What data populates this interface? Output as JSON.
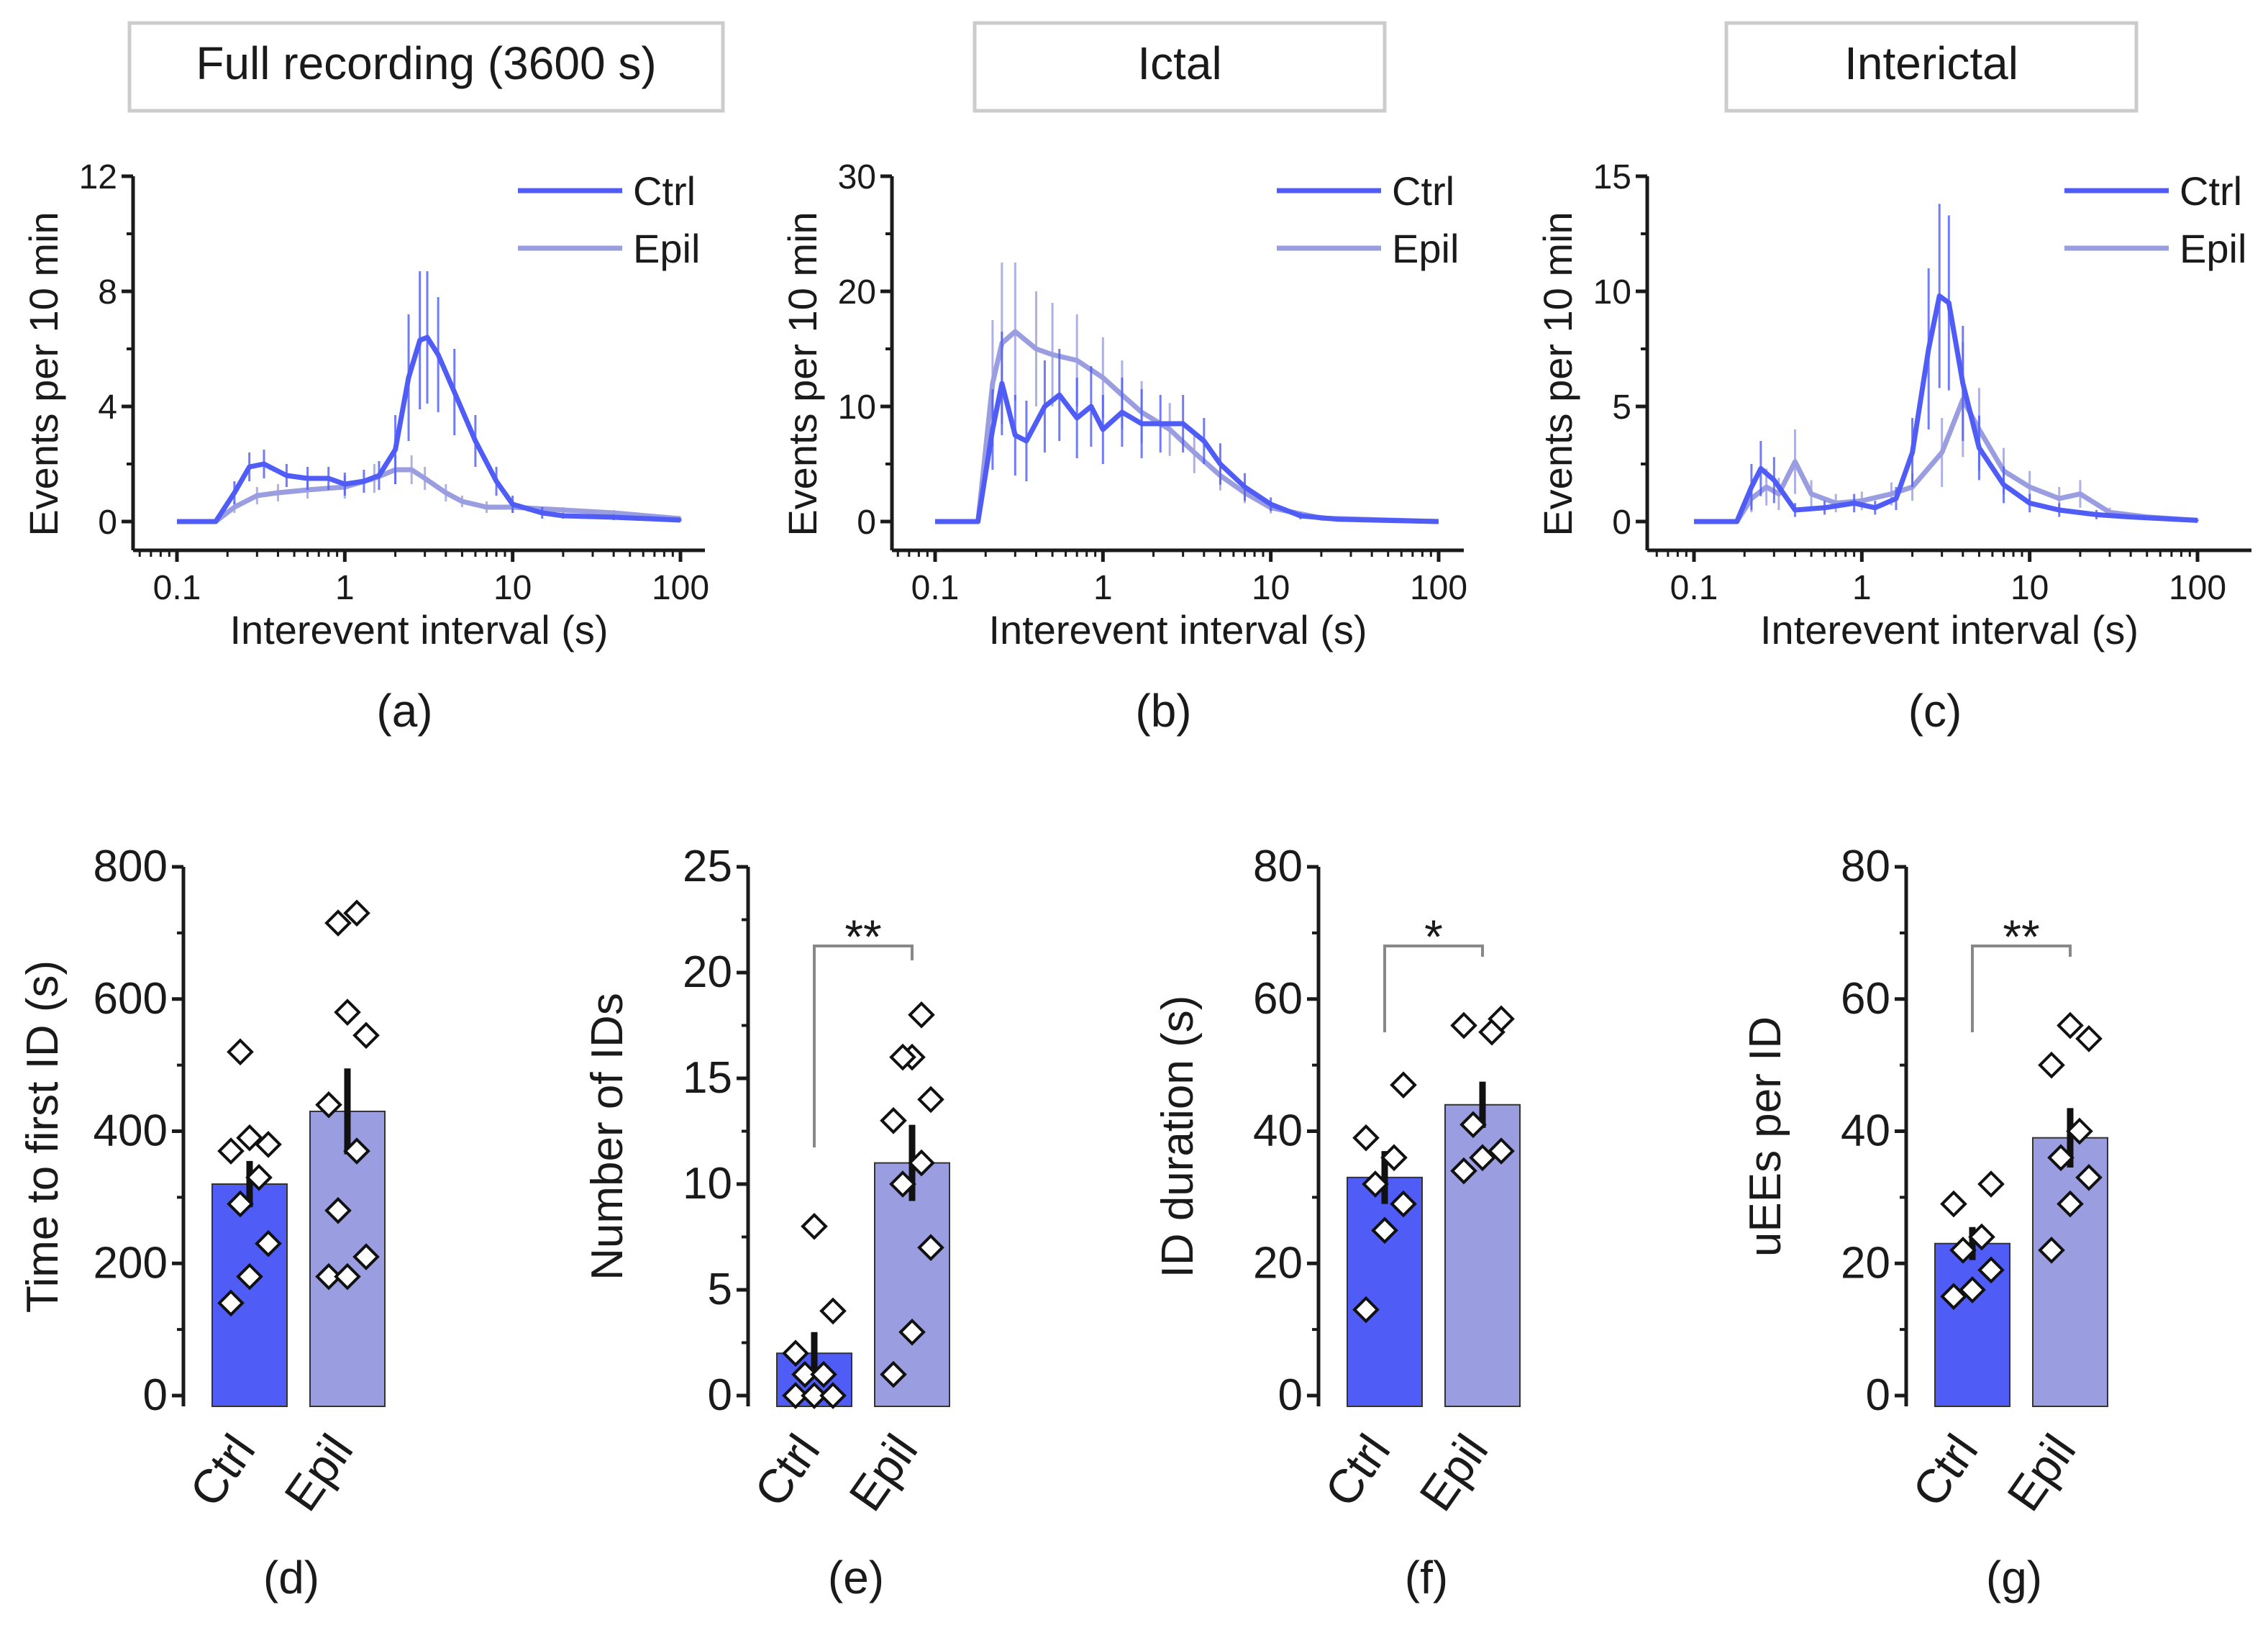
{
  "colors": {
    "ctrl": "#4f5cf5",
    "epil": "#9a9ee0",
    "ctrl_line": "#4f5cf5",
    "epil_line": "#9a9ee0",
    "axis": "#1a1a1a",
    "bracket": "#888888",
    "title_box": "#cccccc"
  },
  "panels_top": [
    {
      "id": "a",
      "caption": "(a)",
      "title": "Full recording (3600 s)",
      "ylabel": "Events per 10 min",
      "xlabel": "Interevent interval (s)",
      "y_ticks": [
        "0",
        "4",
        "8",
        "12"
      ],
      "x_ticks": [
        "0.1",
        "1",
        "10",
        "100"
      ]
    },
    {
      "id": "b",
      "caption": "(b)",
      "title": "Ictal",
      "ylabel": "Events per 10 min",
      "xlabel": "Interevent interval (s)",
      "y_ticks": [
        "0",
        "10",
        "20",
        "30"
      ],
      "x_ticks": [
        "0.1",
        "1",
        "10",
        "100"
      ]
    },
    {
      "id": "c",
      "caption": "(c)",
      "title": "Interictal",
      "ylabel": "Events per 10 min",
      "xlabel": "Interevent interval (s)",
      "y_ticks": [
        "0",
        "5",
        "10",
        "15"
      ],
      "x_ticks": [
        "0.1",
        "1",
        "10",
        "100"
      ]
    }
  ],
  "panels_bottom": [
    {
      "id": "d",
      "caption": "(d)",
      "ylabel": "Time to first ID (s)",
      "y_ticks": [
        "0",
        "200",
        "400",
        "600",
        "800"
      ],
      "categories": [
        "Ctrl",
        "Epil"
      ],
      "significance": ""
    },
    {
      "id": "e",
      "caption": "(e)",
      "ylabel": "Number of IDs",
      "y_ticks": [
        "0",
        "5",
        "10",
        "15",
        "20",
        "25"
      ],
      "categories": [
        "Ctrl",
        "Epil"
      ],
      "significance": "**"
    },
    {
      "id": "f",
      "caption": "(f)",
      "ylabel": "ID duration (s)",
      "y_ticks": [
        "0",
        "20",
        "40",
        "60",
        "80"
      ],
      "categories": [
        "Ctrl",
        "Epil"
      ],
      "significance": "*"
    },
    {
      "id": "g",
      "caption": "(g)",
      "ylabel": "uEEs per ID",
      "y_ticks": [
        "0",
        "20",
        "40",
        "60",
        "80"
      ],
      "categories": [
        "Ctrl",
        "Epil"
      ],
      "significance": "**"
    }
  ],
  "chart_data": [
    {
      "type": "line",
      "panel": "a",
      "title": "Full recording (3600 s)",
      "xlabel": "Interevent interval (s)",
      "ylabel": "Events per 10 min",
      "x_scale": "log",
      "xlim": [
        0.1,
        100
      ],
      "ylim": [
        0,
        12
      ],
      "legend": "top-right",
      "series": [
        {
          "name": "Ctrl",
          "x": [
            0.1,
            0.17,
            0.22,
            0.27,
            0.33,
            0.45,
            0.6,
            0.8,
            1,
            1.3,
            1.6,
            2,
            2.4,
            2.8,
            3.1,
            3.6,
            4.5,
            6,
            8,
            10,
            15,
            20,
            40,
            100
          ],
          "y": [
            0,
            0,
            1.0,
            1.9,
            2.0,
            1.6,
            1.5,
            1.5,
            1.3,
            1.4,
            1.6,
            2.5,
            5.0,
            6.3,
            6.4,
            5.8,
            4.5,
            2.8,
            1.4,
            0.6,
            0.3,
            0.2,
            0.15,
            0.05
          ],
          "err": [
            0,
            0,
            0.4,
            0.5,
            0.5,
            0.4,
            0.4,
            0.4,
            0.4,
            0.4,
            0.5,
            1.2,
            2.2,
            2.4,
            2.3,
            2.0,
            1.5,
            0.9,
            0.5,
            0.3,
            0.2,
            0.1,
            0.1,
            0.05
          ]
        },
        {
          "name": "Epil",
          "x": [
            0.1,
            0.17,
            0.22,
            0.3,
            0.4,
            0.6,
            1,
            1.5,
            2,
            2.5,
            3,
            4,
            5,
            7,
            10,
            20,
            40,
            100
          ],
          "y": [
            0,
            0,
            0.5,
            0.9,
            1.0,
            1.1,
            1.2,
            1.5,
            1.8,
            1.8,
            1.5,
            1.0,
            0.7,
            0.5,
            0.5,
            0.4,
            0.3,
            0.1
          ],
          "err": [
            0,
            0,
            0.2,
            0.3,
            0.3,
            0.3,
            0.4,
            0.5,
            0.5,
            0.5,
            0.4,
            0.3,
            0.2,
            0.2,
            0.2,
            0.1,
            0.1,
            0.05
          ]
        }
      ]
    },
    {
      "type": "line",
      "panel": "b",
      "title": "Ictal",
      "xlabel": "Interevent interval (s)",
      "ylabel": "Events per 10 min",
      "x_scale": "log",
      "xlim": [
        0.1,
        100
      ],
      "ylim": [
        0,
        30
      ],
      "legend": "top-right",
      "series": [
        {
          "name": "Ctrl",
          "x": [
            0.1,
            0.18,
            0.22,
            0.25,
            0.3,
            0.35,
            0.45,
            0.55,
            0.7,
            0.85,
            1,
            1.3,
            1.7,
            2.2,
            3,
            4,
            5,
            7,
            10,
            15,
            25,
            100
          ],
          "y": [
            0,
            0,
            8.0,
            12.0,
            7.5,
            7.0,
            10.0,
            11.0,
            9.0,
            10.0,
            8.0,
            9.5,
            8.5,
            8.5,
            8.5,
            7.0,
            5.0,
            3.0,
            1.5,
            0.5,
            0.2,
            0
          ],
          "err": [
            0,
            0,
            3.5,
            4.5,
            3.5,
            3.5,
            4.0,
            4.0,
            3.5,
            3.5,
            3.0,
            3.0,
            3.0,
            2.5,
            2.5,
            2.0,
            1.8,
            1.2,
            0.6,
            0.3,
            0.1,
            0
          ]
        },
        {
          "name": "Epil",
          "x": [
            0.1,
            0.18,
            0.22,
            0.25,
            0.3,
            0.4,
            0.5,
            0.7,
            1,
            1.3,
            1.7,
            2.5,
            3.5,
            5,
            7,
            10,
            20,
            100
          ],
          "y": [
            0,
            0,
            12.0,
            15.5,
            16.5,
            15.0,
            14.5,
            14.0,
            12.5,
            11.0,
            9.5,
            8.0,
            6.0,
            4.0,
            2.5,
            1.2,
            0.3,
            0
          ],
          "err": [
            0,
            0,
            5.5,
            7.0,
            6.0,
            5.0,
            4.5,
            4.0,
            3.5,
            3.0,
            2.7,
            2.3,
            1.8,
            1.3,
            0.9,
            0.5,
            0.2,
            0
          ]
        }
      ]
    },
    {
      "type": "line",
      "panel": "c",
      "title": "Interictal",
      "xlabel": "Interevent interval (s)",
      "ylabel": "Events per 10 min",
      "x_scale": "log",
      "xlim": [
        0.1,
        100
      ],
      "ylim": [
        0,
        15
      ],
      "legend": "top-right",
      "series": [
        {
          "name": "Ctrl",
          "x": [
            0.1,
            0.18,
            0.22,
            0.25,
            0.3,
            0.4,
            0.6,
            0.9,
            1.2,
            1.6,
            2,
            2.5,
            2.9,
            3.3,
            4,
            5,
            7,
            10,
            15,
            25,
            40,
            100
          ],
          "y": [
            0,
            0,
            1.5,
            2.3,
            1.8,
            0.5,
            0.6,
            0.8,
            0.6,
            1.0,
            3.0,
            7.5,
            9.8,
            9.5,
            6.0,
            3.2,
            1.6,
            0.8,
            0.5,
            0.3,
            0.2,
            0.05
          ],
          "err": [
            0,
            0,
            1.0,
            1.2,
            1.0,
            0.3,
            0.3,
            0.4,
            0.3,
            0.5,
            1.5,
            3.5,
            4.0,
            3.8,
            2.5,
            1.4,
            0.8,
            0.4,
            0.3,
            0.2,
            0.1,
            0.05
          ]
        },
        {
          "name": "Epil",
          "x": [
            0.1,
            0.18,
            0.22,
            0.27,
            0.32,
            0.4,
            0.5,
            0.7,
            1,
            1.5,
            2,
            3,
            4,
            5,
            7,
            10,
            15,
            20,
            30,
            50,
            100
          ],
          "y": [
            0,
            0,
            1.0,
            1.5,
            1.2,
            2.6,
            1.2,
            0.8,
            0.9,
            1.2,
            1.5,
            3.0,
            5.3,
            4.0,
            2.2,
            1.5,
            1.0,
            1.2,
            0.4,
            0.2,
            0.05
          ],
          "err": [
            0,
            0,
            0.6,
            0.8,
            0.7,
            1.4,
            0.6,
            0.4,
            0.4,
            0.5,
            0.6,
            1.5,
            2.5,
            1.8,
            1.0,
            0.7,
            0.5,
            0.6,
            0.2,
            0.1,
            0.05
          ]
        }
      ]
    },
    {
      "type": "bar",
      "panel": "d",
      "ylabel": "Time to first ID (s)",
      "ylim": [
        0,
        800
      ],
      "categories": [
        "Ctrl",
        "Epil"
      ],
      "values": [
        320,
        430
      ],
      "sem": [
        35,
        65
      ],
      "points": [
        [
          140,
          180,
          230,
          290,
          330,
          370,
          380,
          390,
          520
        ],
        [
          180,
          180,
          210,
          280,
          370,
          440,
          545,
          580,
          715,
          730
        ]
      ]
    },
    {
      "type": "bar",
      "panel": "e",
      "ylabel": "Number of IDs",
      "ylim": [
        0,
        25
      ],
      "categories": [
        "Ctrl",
        "Epil"
      ],
      "values": [
        2,
        11
      ],
      "sem": [
        1,
        1.8
      ],
      "points": [
        [
          0,
          0,
          0,
          1,
          1,
          2,
          4,
          8
        ],
        [
          1,
          3,
          7,
          10,
          11,
          13,
          14,
          16,
          16,
          18
        ]
      ],
      "significance": "**"
    },
    {
      "type": "bar",
      "panel": "f",
      "ylabel": "ID duration (s)",
      "ylim": [
        0,
        80
      ],
      "categories": [
        "Ctrl",
        "Epil"
      ],
      "values": [
        33,
        44
      ],
      "sem": [
        4,
        3.5
      ],
      "points": [
        [
          13,
          25,
          29,
          32,
          36,
          39,
          47
        ],
        [
          34,
          36,
          37,
          41,
          55,
          56,
          57
        ]
      ],
      "significance": "*"
    },
    {
      "type": "bar",
      "panel": "g",
      "ylabel": "uEEs per ID",
      "ylim": [
        0,
        80
      ],
      "categories": [
        "Ctrl",
        "Epil"
      ],
      "values": [
        23,
        39
      ],
      "sem": [
        2.5,
        4.5
      ],
      "points": [
        [
          15,
          16,
          19,
          22,
          24,
          29,
          32
        ],
        [
          22,
          29,
          33,
          36,
          40,
          50,
          54,
          56
        ]
      ],
      "significance": "**"
    }
  ]
}
